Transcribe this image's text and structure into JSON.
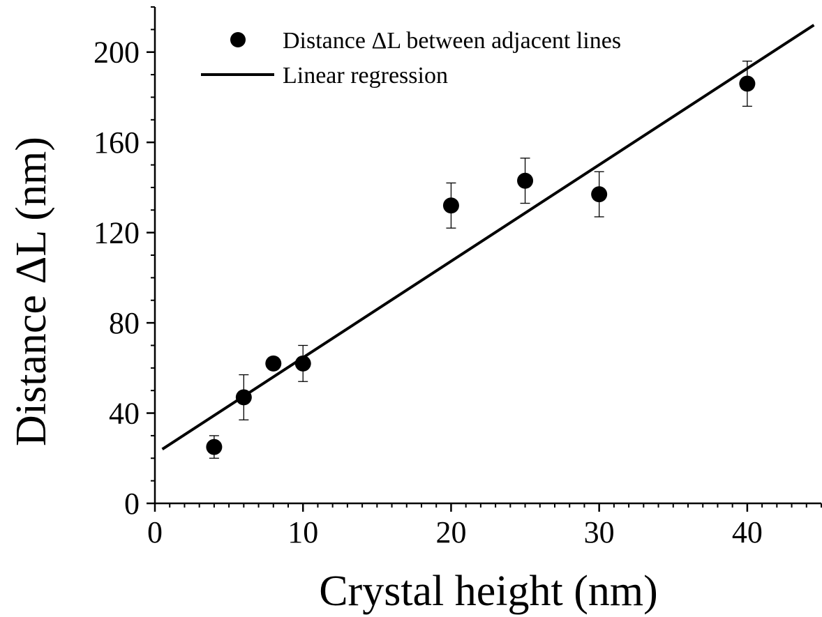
{
  "chart_data": {
    "type": "scatter",
    "xlabel": "Crystal height (nm)",
    "ylabel": "Distance ΔL (nm)",
    "xlim": [
      0,
      45
    ],
    "ylim": [
      0,
      220
    ],
    "xticks": [
      0,
      10,
      20,
      30,
      40
    ],
    "yticks": [
      0,
      40,
      80,
      120,
      160,
      200
    ],
    "x_minor_step": 1,
    "y_minor_step": 10,
    "grid": false,
    "legend_position": "top-left",
    "series": [
      {
        "name": "Distance ΔL between adjacent lines",
        "kind": "points",
        "color": "#000000",
        "x": [
          4,
          6,
          8,
          10,
          20,
          25,
          30,
          40
        ],
        "y": [
          25,
          47,
          62,
          62,
          132,
          143,
          137,
          186
        ],
        "yerr": [
          5,
          10,
          0,
          8,
          10,
          10,
          10,
          10
        ]
      },
      {
        "name": "Linear regression",
        "kind": "line",
        "color": "#000000",
        "x": [
          0.5,
          44.5
        ],
        "y": [
          24,
          212
        ]
      }
    ]
  }
}
